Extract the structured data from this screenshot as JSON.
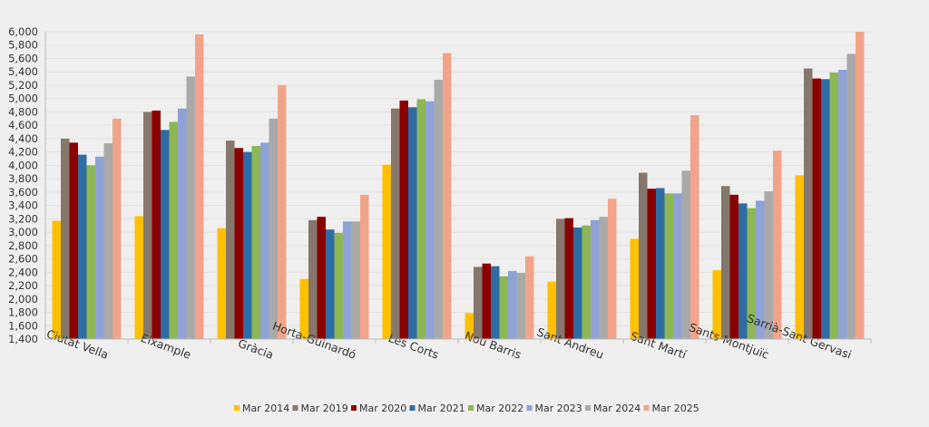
{
  "chart_data": {
    "type": "bar",
    "title": "",
    "xlabel": "",
    "ylabel": "",
    "ylim": [
      1400,
      6000
    ],
    "ytick_step": 200,
    "grid": true,
    "legend_position": "bottom",
    "categories": [
      "Ciutat Vella",
      "Eixample",
      "Gràcia",
      "Horta-Guinardó",
      "Les Corts",
      "Nou Barris",
      "Sant Andreu",
      "Sant Martí",
      "Sants-Montjuïc",
      "Sarrià-Sant Gervasi"
    ],
    "series": [
      {
        "name": "Mar 2014",
        "color": "#FFC000",
        "values": [
          3170,
          3240,
          3060,
          2300,
          4010,
          1790,
          2260,
          2900,
          2430,
          3850
        ]
      },
      {
        "name": "Mar 2019",
        "color": "#85776B",
        "values": [
          4400,
          4800,
          4370,
          3180,
          4850,
          2480,
          3200,
          3890,
          3690,
          5450
        ]
      },
      {
        "name": "Mar 2020",
        "color": "#8B0000",
        "values": [
          4340,
          4820,
          4260,
          3230,
          4970,
          2530,
          3210,
          3650,
          3560,
          5300
        ]
      },
      {
        "name": "Mar 2021",
        "color": "#2E6DA4",
        "values": [
          4160,
          4530,
          4200,
          3040,
          4870,
          2490,
          3070,
          3660,
          3430,
          5290
        ]
      },
      {
        "name": "Mar 2022",
        "color": "#8DB654",
        "values": [
          4000,
          4650,
          4290,
          2990,
          4990,
          2340,
          3100,
          3580,
          3360,
          5390
        ]
      },
      {
        "name": "Mar 2023",
        "color": "#8FA2D6",
        "values": [
          4130,
          4850,
          4340,
          3160,
          4960,
          2420,
          3180,
          3580,
          3470,
          5430
        ]
      },
      {
        "name": "Mar 2024",
        "color": "#A9A9A9",
        "values": [
          4330,
          5330,
          4700,
          3160,
          5280,
          2390,
          3230,
          3920,
          3610,
          5670
        ]
      },
      {
        "name": "Mar 2025",
        "color": "#F2A48A",
        "values": [
          4700,
          5960,
          5200,
          3560,
          5680,
          2640,
          3500,
          4750,
          4220,
          6000
        ]
      }
    ]
  }
}
